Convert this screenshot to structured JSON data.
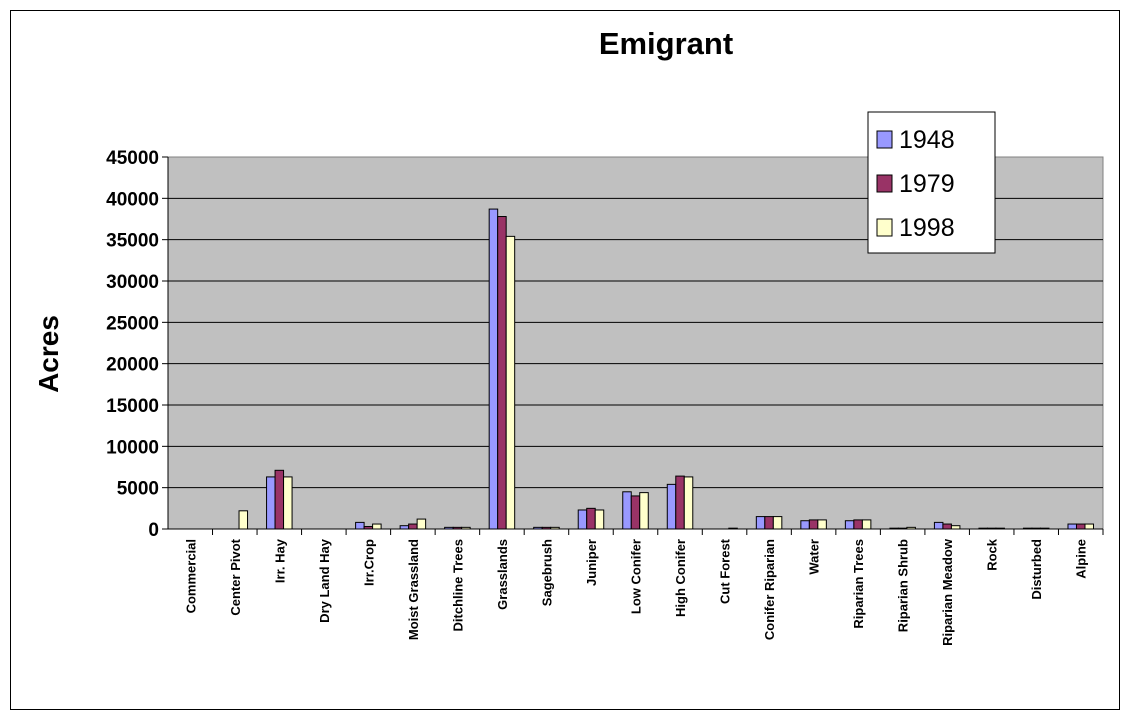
{
  "chart_data": {
    "type": "bar",
    "title": "Emigrant",
    "ylabel": "Acres",
    "xlabel": "",
    "ylim": [
      0,
      45000
    ],
    "yticks": [
      0,
      5000,
      10000,
      15000,
      20000,
      25000,
      30000,
      35000,
      40000,
      45000
    ],
    "grid": true,
    "legend_position": "top-right",
    "categories": [
      "Commercial",
      "Center Pivot",
      "Irr. Hay",
      "Dry Land Hay",
      "Irr.Crop",
      "Moist Grassland",
      "Ditchline Trees",
      "Grasslands",
      "Sagebrush",
      "Juniper",
      "Low Conifer",
      "High Conifer",
      "Cut Forest",
      "Conifer Riparian",
      "Water",
      "Riparian Trees",
      "Riparian Shrub",
      "Riparian Meadow",
      "Rock",
      "Disturbed",
      "Alpine"
    ],
    "series": [
      {
        "name": "1948",
        "color": "#9999FF",
        "values": [
          0,
          0,
          6300,
          0,
          800,
          400,
          200,
          38700,
          200,
          2300,
          4500,
          5400,
          0,
          1500,
          1000,
          1000,
          100,
          800,
          100,
          100,
          600
        ]
      },
      {
        "name": "1979",
        "color": "#993366",
        "values": [
          0,
          0,
          7100,
          0,
          300,
          600,
          200,
          37800,
          200,
          2500,
          4000,
          6400,
          0,
          1500,
          1100,
          1100,
          100,
          600,
          100,
          100,
          600
        ]
      },
      {
        "name": "1998",
        "color": "#FFFFCC",
        "values": [
          0,
          2200,
          6300,
          0,
          600,
          1200,
          200,
          35400,
          200,
          2300,
          4400,
          6300,
          100,
          1500,
          1100,
          1100,
          200,
          400,
          100,
          100,
          600
        ]
      }
    ]
  }
}
